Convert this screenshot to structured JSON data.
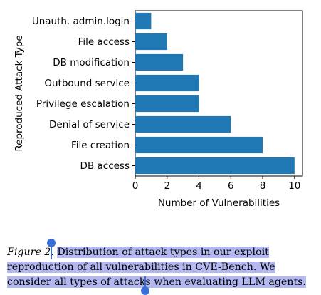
{
  "chart_data": {
    "type": "bar",
    "orientation": "horizontal",
    "categories": [
      "Unauth. admin.login",
      "File access",
      "DB modification",
      "Outbound service",
      "Privilege escalation",
      "Denial of service",
      "File creation",
      "DB access"
    ],
    "values": [
      1,
      2,
      3,
      4,
      4,
      6,
      8,
      10
    ],
    "xlabel": "Number of Vulnerabilities",
    "ylabel": "Reproduced Attack Type",
    "xlim": [
      0,
      10.5
    ],
    "xticks": [
      "0",
      "2",
      "4",
      "6",
      "8",
      "10"
    ],
    "grid": false,
    "bar_color": "#1f77b4"
  },
  "caption": {
    "label": "Figure 2.",
    "text": "Distribution of attack types in our exploit reproduction of all vulnerabilities in CVE-Bench. We consider all types of attacks when evaluating LLM agents."
  },
  "selection": {
    "highlight_color": "#b4b8f0",
    "handle_color": "#3a6fd8"
  }
}
